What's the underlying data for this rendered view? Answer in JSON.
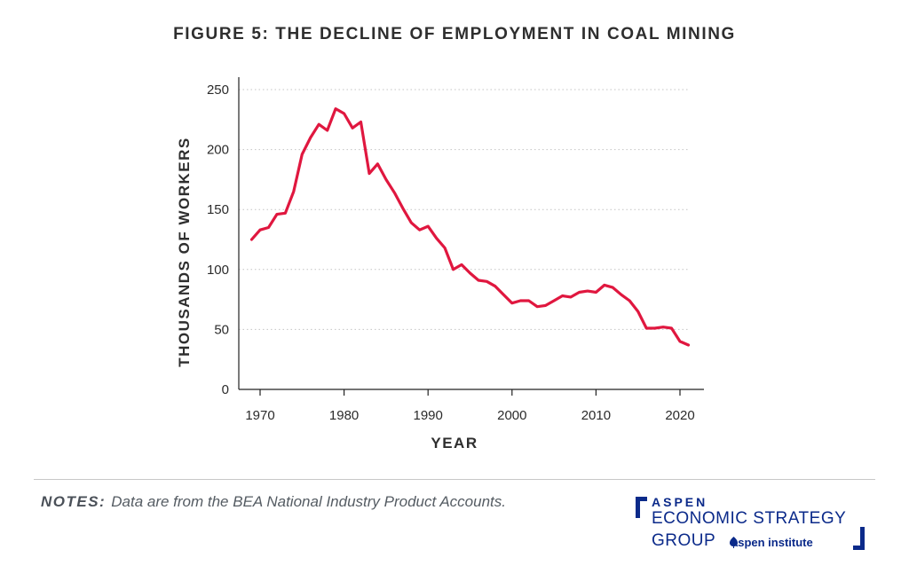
{
  "colors": {
    "line": "#e0173f",
    "grid": "#c4c4c4",
    "axis": "#222222",
    "brand": "#0b2a8a"
  },
  "notes": {
    "label": "NOTES:",
    "text": "Data are from the BEA National Industry Product Accounts."
  },
  "logo": {
    "top": "ASPEN",
    "line1": "ECONOMIC STRATEGY",
    "line2": "GROUP",
    "institute": "aspen institute",
    "icon": "aspen-leaf-icon"
  },
  "chart_data": {
    "type": "line",
    "title": "FIGURE 5: THE DECLINE OF EMPLOYMENT IN COAL MINING",
    "xlabel": "YEAR",
    "ylabel": "THOUSANDS OF WORKERS",
    "xlim": [
      1967,
      2022
    ],
    "ylim": [
      0,
      260
    ],
    "xticks": [
      1970,
      1980,
      1990,
      2000,
      2010,
      2020
    ],
    "yticks": [
      0,
      50,
      100,
      150,
      200,
      250
    ],
    "grid": "horizontal dotted",
    "series": [
      {
        "x": [
          1969,
          1970,
          1971,
          1972,
          1973,
          1974,
          1975,
          1976,
          1977,
          1978,
          1979,
          1980,
          1981,
          1982,
          1983,
          1984,
          1985,
          1986,
          1987,
          1988,
          1989,
          1990,
          1991,
          1992,
          1993,
          1994,
          1995,
          1996,
          1997,
          1998,
          1999,
          2000,
          2001,
          2002,
          2003,
          2004,
          2005,
          2006,
          2007,
          2008,
          2009,
          2010,
          2011,
          2012,
          2013,
          2014,
          2015,
          2016,
          2017,
          2018,
          2019,
          2020,
          2021
        ],
        "values": [
          125,
          133,
          135,
          146,
          147,
          165,
          196,
          210,
          221,
          216,
          234,
          230,
          218,
          223,
          180,
          188,
          175,
          164,
          151,
          139,
          133,
          136,
          126,
          118,
          100,
          104,
          97,
          91,
          90,
          86,
          79,
          72,
          74,
          74,
          69,
          70,
          74,
          78,
          77,
          81,
          82,
          81,
          87,
          85,
          79,
          74,
          65,
          51,
          51,
          52,
          51,
          40,
          37
        ]
      }
    ]
  }
}
